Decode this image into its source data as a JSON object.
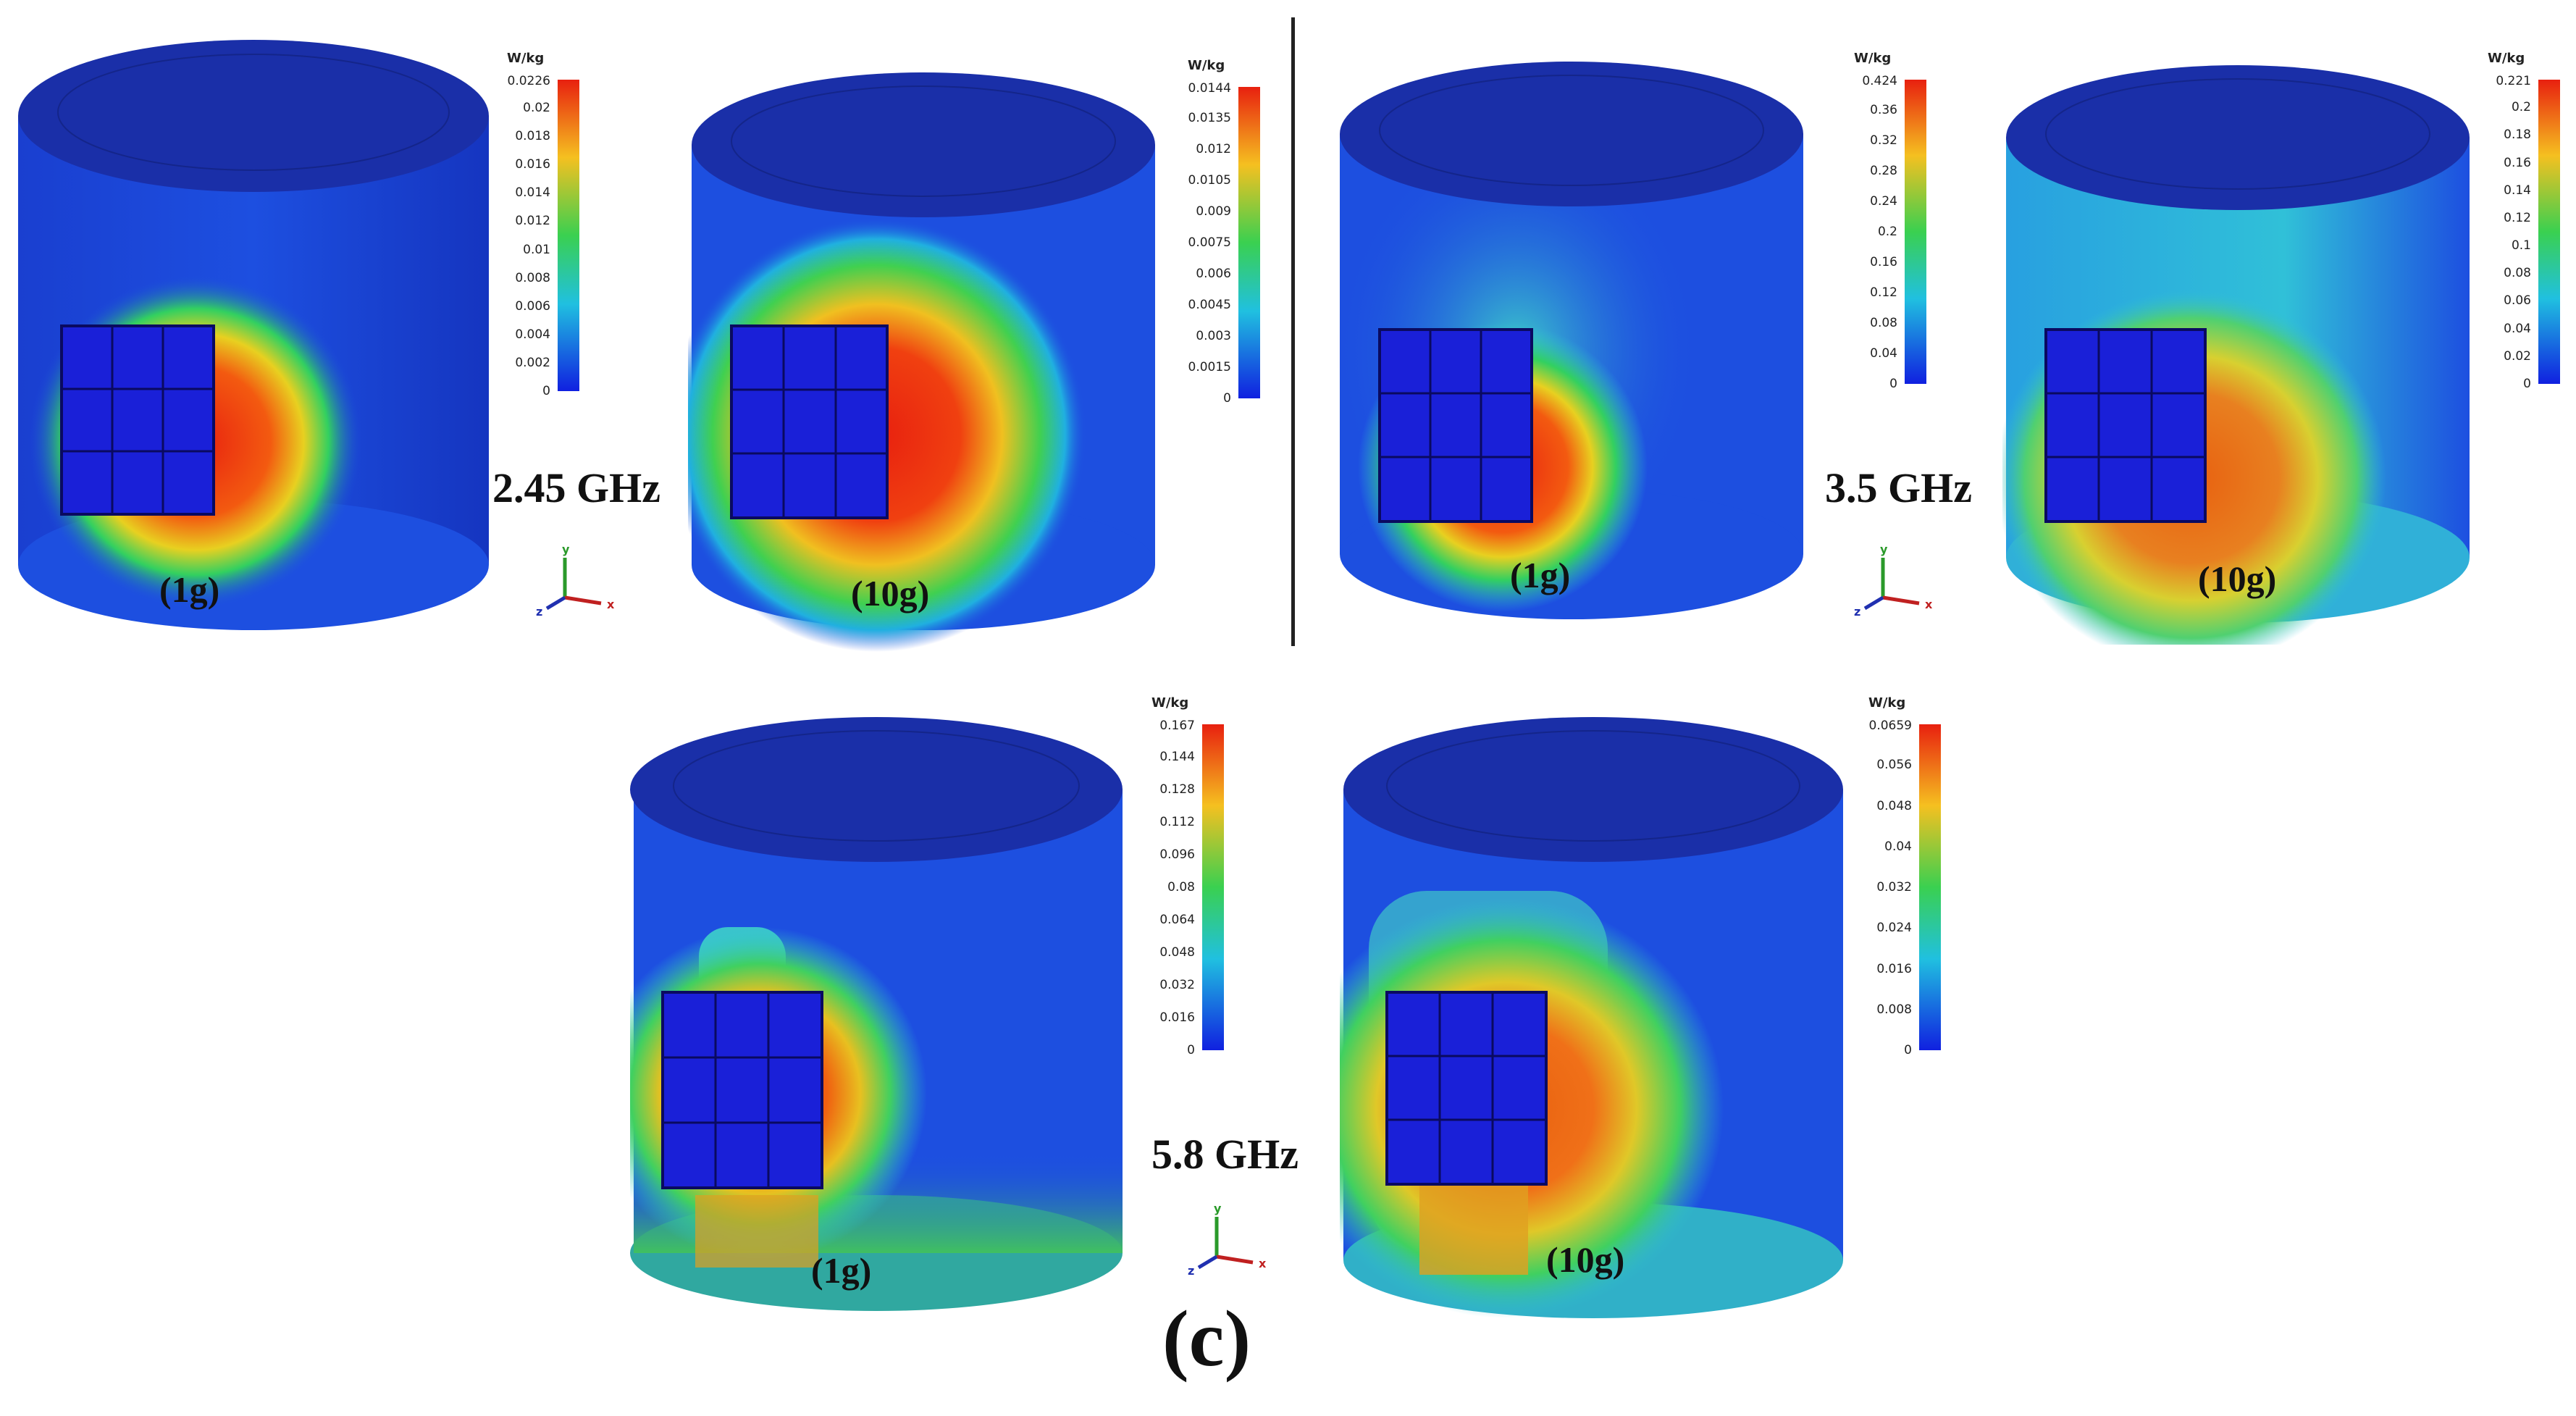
{
  "unit": "W/kg",
  "caption": "(c)",
  "frequencies": [
    {
      "label": "2.45 GHz"
    },
    {
      "label": "3.5 GHz"
    },
    {
      "label": "5.8 GHz"
    }
  ],
  "panels": [
    {
      "mass": "(1g)",
      "max": "0.0226",
      "ticks": [
        "0.02",
        "0.018",
        "0.016",
        "0.014",
        "0.012",
        "0.01",
        "0.008",
        "0.006",
        "0.004",
        "0.002",
        "0"
      ],
      "hot": "red"
    },
    {
      "mass": "(10g)",
      "max": "0.0144",
      "ticks": [
        "0.0135",
        "0.012",
        "0.0105",
        "0.009",
        "0.0075",
        "0.006",
        "0.0045",
        "0.003",
        "0.0015",
        "0"
      ],
      "hot": "red"
    },
    {
      "mass": "(1g)",
      "max": "0.424",
      "ticks": [
        "0.36",
        "0.32",
        "0.28",
        "0.24",
        "0.2",
        "0.16",
        "0.12",
        "0.08",
        "0.04",
        "0"
      ],
      "hot": "red"
    },
    {
      "mass": "(10g)",
      "max": "0.221",
      "ticks": [
        "0.2",
        "0.18",
        "0.16",
        "0.14",
        "0.12",
        "0.1",
        "0.08",
        "0.06",
        "0.04",
        "0.02",
        "0"
      ],
      "hot": "orange"
    },
    {
      "mass": "(1g)",
      "max": "0.167",
      "ticks": [
        "0.144",
        "0.128",
        "0.112",
        "0.096",
        "0.08",
        "0.064",
        "0.048",
        "0.032",
        "0.016",
        "0"
      ],
      "hot": "red"
    },
    {
      "mass": "(10g)",
      "max": "0.0659",
      "ticks": [
        "0.056",
        "0.048",
        "0.04",
        "0.032",
        "0.024",
        "0.016",
        "0.008",
        "0"
      ],
      "hot": "orange"
    }
  ],
  "axes": {
    "x": "x",
    "y": "y",
    "z": "z"
  }
}
